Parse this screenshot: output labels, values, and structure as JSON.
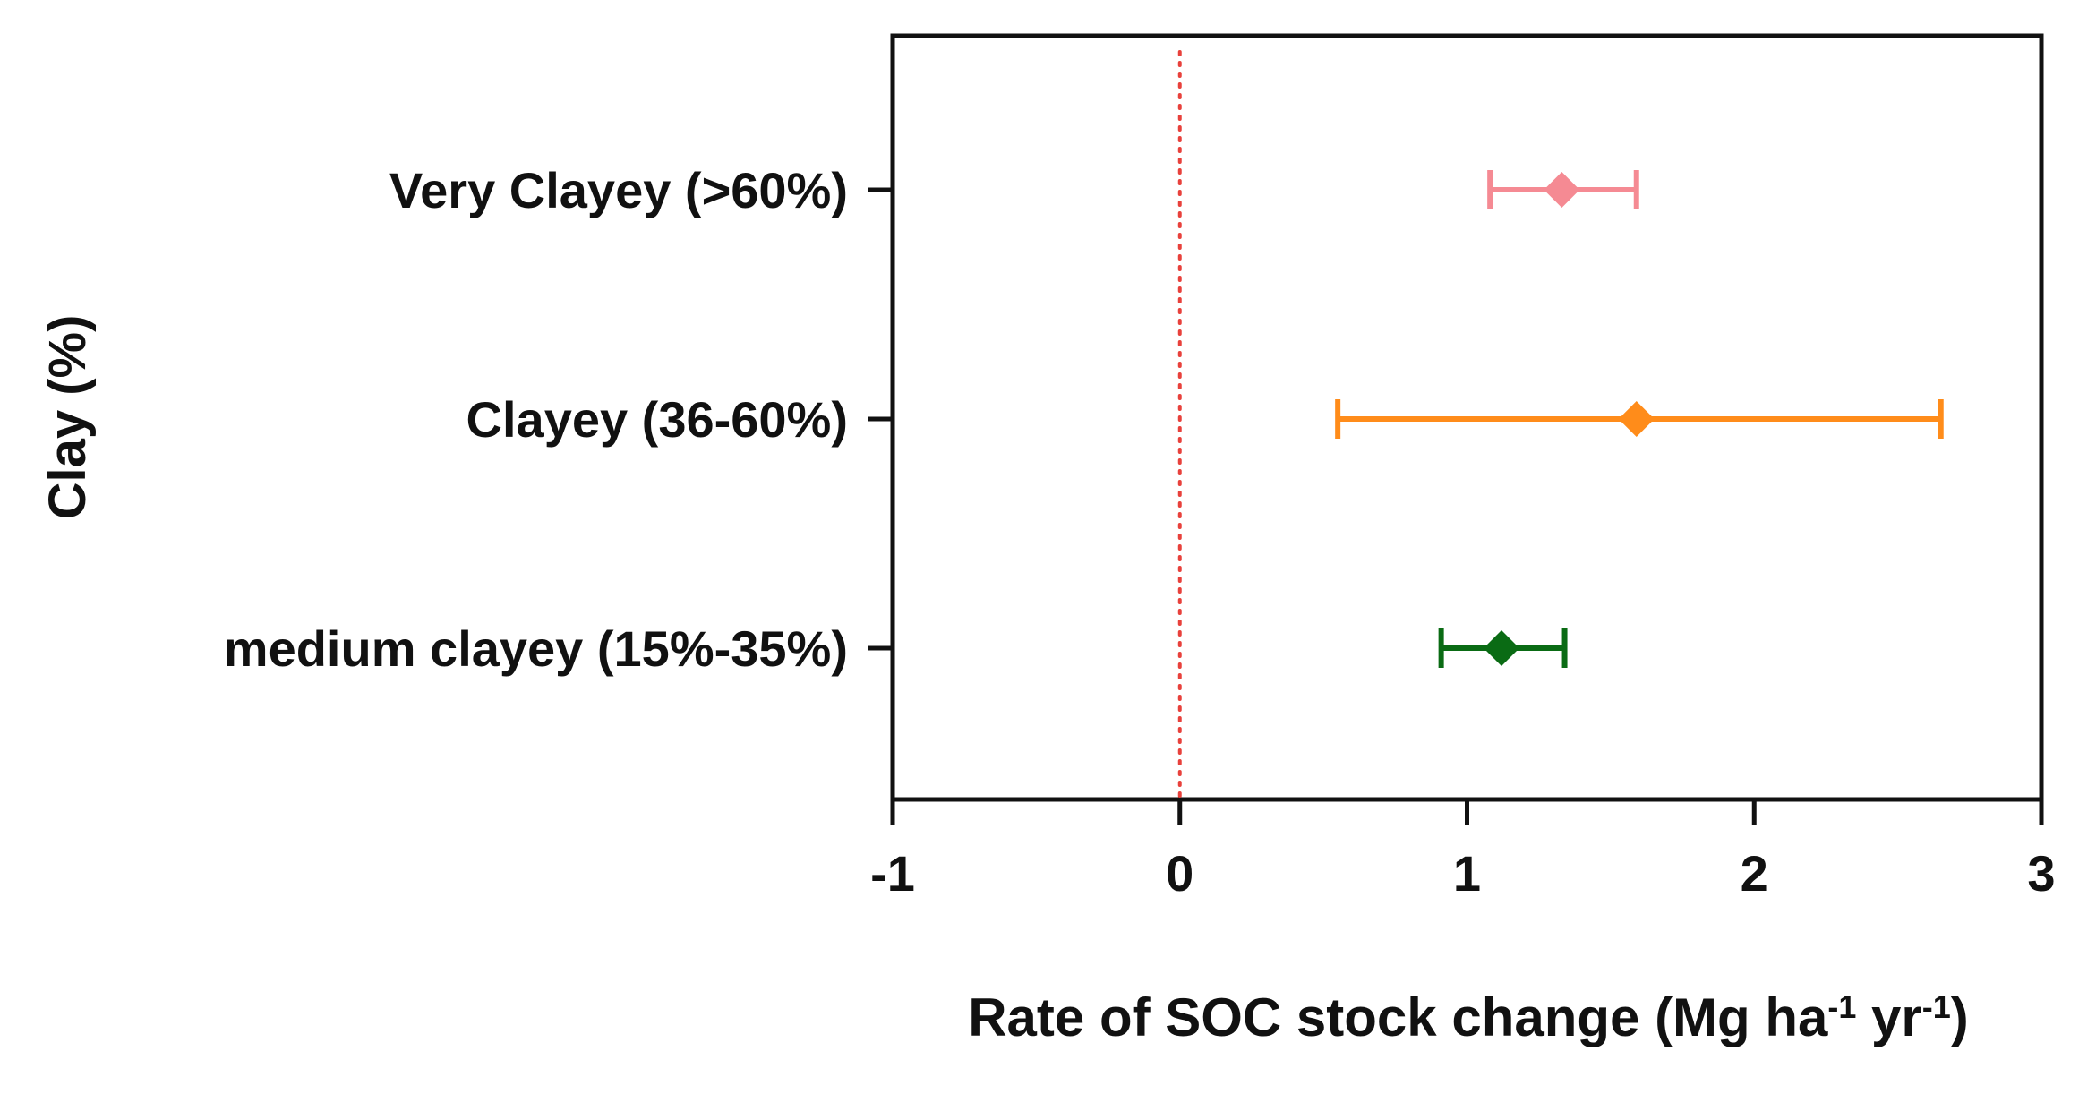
{
  "chart_data": {
    "type": "forest",
    "title": "",
    "xlabel": {
      "parts": [
        {
          "text": "Rate of SOC stock change (Mg ha",
          "sup": false
        },
        {
          "text": "-1",
          "sup": true
        },
        {
          "text": " yr",
          "sup": false
        },
        {
          "text": "-1",
          "sup": true
        },
        {
          "text": ")",
          "sup": false
        }
      ]
    },
    "ylabel": "Clay (%)",
    "xlim": [
      -1,
      3
    ],
    "xticks": [
      -1,
      0,
      1,
      2,
      3
    ],
    "xtick_labels": [
      "-1",
      "0",
      "1",
      "2",
      "3"
    ],
    "reference_line": {
      "x": 0,
      "color": "#e8413c",
      "style": "dotted"
    },
    "categories": [
      {
        "label": "Very Clayey (>60%)",
        "estimate": 1.33,
        "lower": 1.08,
        "upper": 1.59,
        "color": "#f58a93"
      },
      {
        "label": "Clayey (36-60%)",
        "estimate": 1.59,
        "lower": 0.55,
        "upper": 2.65,
        "color": "#ff8c1a"
      },
      {
        "label": "medium clayey (15%-35%)",
        "estimate": 1.12,
        "lower": 0.91,
        "upper": 1.34,
        "color": "#0a6b14"
      }
    ]
  }
}
